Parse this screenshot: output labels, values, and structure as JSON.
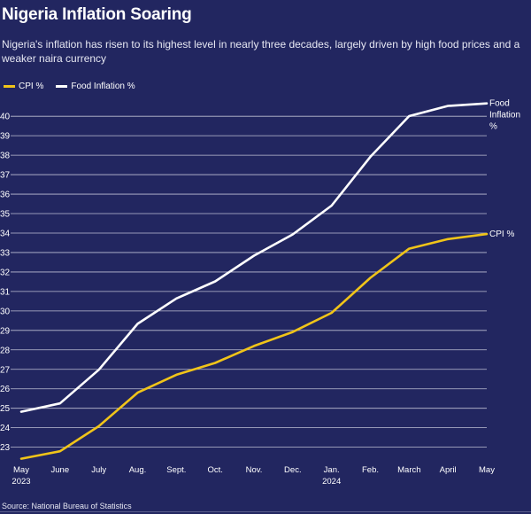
{
  "title": "Nigeria Inflation Soaring",
  "subtitle": "Nigeria's inflation has risen to its highest level in nearly three decades, largely driven by high food prices and a weaker naira currency",
  "source": "Source: National Bureau of Statistics",
  "colors": {
    "background": "#222660",
    "cpi": "#f0c419",
    "food": "#ffffff",
    "grid": "#d9dae8"
  },
  "legend": [
    {
      "label": "CPI %",
      "color": "#f0c419"
    },
    {
      "label": "Food Inflation %",
      "color": "#ffffff"
    }
  ],
  "chart_data": {
    "type": "line",
    "title": "Nigeria Inflation Soaring",
    "categories": [
      "May 2023",
      "June",
      "July",
      "Aug.",
      "Sept.",
      "Oct.",
      "Nov.",
      "Dec.",
      "Jan. 2024",
      "Feb.",
      "March",
      "April",
      "May"
    ],
    "x_tick_labels": [
      [
        "May",
        "2023"
      ],
      [
        "June"
      ],
      [
        "July"
      ],
      [
        "Aug."
      ],
      [
        "Sept."
      ],
      [
        "Oct."
      ],
      [
        "Nov."
      ],
      [
        "Dec."
      ],
      [
        "Jan.",
        "2024"
      ],
      [
        "Feb."
      ],
      [
        "March"
      ],
      [
        "April"
      ],
      [
        "May"
      ]
    ],
    "series": [
      {
        "name": "CPI %",
        "color": "#f0c419",
        "end_label": [
          "CPI %"
        ],
        "values": [
          22.41,
          22.79,
          24.08,
          25.8,
          26.72,
          27.33,
          28.2,
          28.92,
          29.9,
          31.7,
          33.2,
          33.69,
          33.95
        ]
      },
      {
        "name": "Food Inflation %",
        "color": "#ffffff",
        "end_label": [
          "Food",
          "Inflation",
          "%"
        ],
        "values": [
          24.82,
          25.25,
          26.98,
          29.34,
          30.64,
          31.52,
          32.84,
          33.93,
          35.41,
          37.92,
          40.01,
          40.53,
          40.66
        ]
      }
    ],
    "yticks": [
      23,
      24,
      25,
      26,
      27,
      28,
      29,
      30,
      31,
      32,
      33,
      34,
      35,
      36,
      37,
      38,
      39,
      40
    ],
    "ylim": [
      22.3,
      40.6
    ],
    "grid": "horizontal",
    "legend_position": "top-left"
  }
}
